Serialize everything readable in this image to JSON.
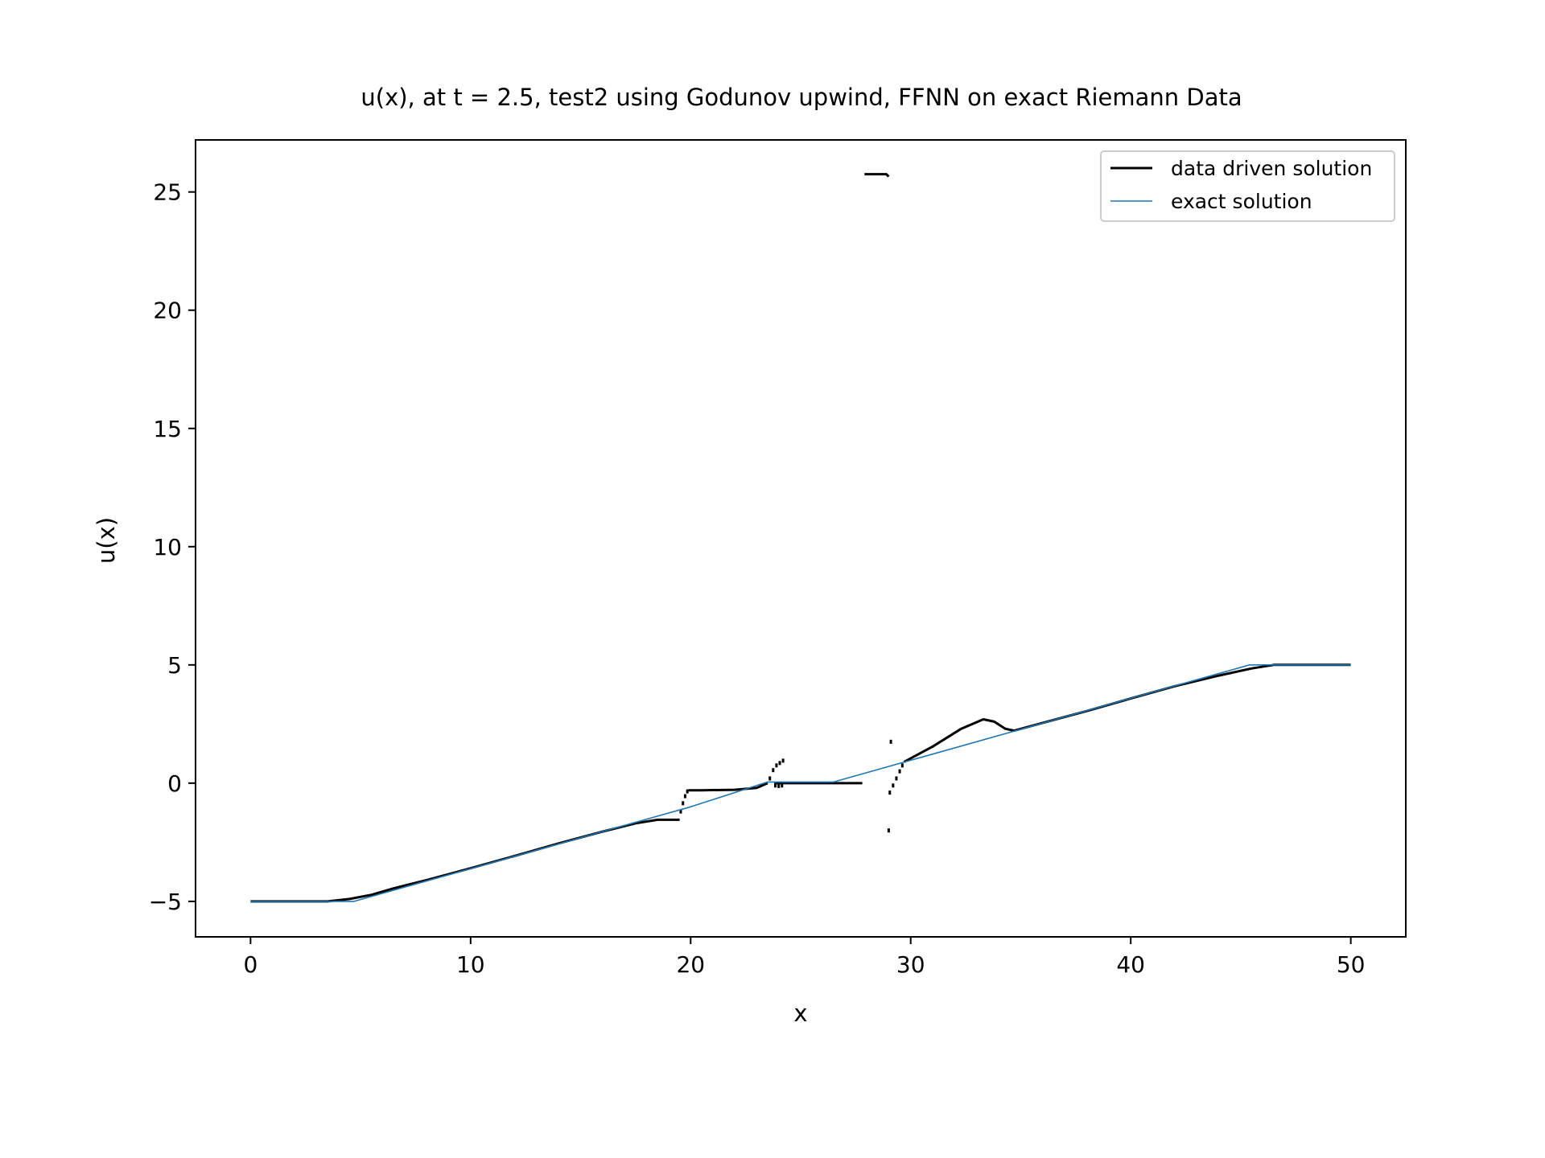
{
  "chart_data": {
    "type": "line",
    "title": "u(x), at t = 2.5, test2 using Godunov upwind, FFNN on exact Riemann Data",
    "xlabel": "x",
    "ylabel": "u(x)",
    "xlim": [
      -2.5,
      52.5
    ],
    "ylim": [
      -6.5,
      27.2
    ],
    "x_ticks": [
      0,
      10,
      20,
      30,
      40,
      50
    ],
    "x_tick_labels": [
      "0",
      "10",
      "20",
      "30",
      "40",
      "50"
    ],
    "y_ticks": [
      -5,
      0,
      5,
      10,
      15,
      20,
      25
    ],
    "y_tick_labels": [
      "−5",
      "0",
      "5",
      "10",
      "15",
      "20",
      "25"
    ],
    "grid": false,
    "legend": {
      "position": "top-right",
      "entries": [
        "data driven solution",
        "exact solution"
      ]
    },
    "series": [
      {
        "name": "data driven solution",
        "color": "#000000",
        "style": "line",
        "points": [
          [
            0,
            -5.0
          ],
          [
            3.5,
            -5.0
          ],
          [
            4.5,
            -4.9
          ],
          [
            5.5,
            -4.72
          ],
          [
            6.5,
            -4.45
          ],
          [
            8,
            -4.1
          ],
          [
            10,
            -3.6
          ],
          [
            12,
            -3.08
          ],
          [
            14,
            -2.55
          ],
          [
            16,
            -2.05
          ],
          [
            17.5,
            -1.7
          ],
          [
            18.5,
            -1.55
          ],
          [
            19.5,
            -1.55
          ]
        ]
      },
      {
        "name": "data driven solution (segment 2)",
        "color": "#000000",
        "style": "line",
        "points": [
          [
            19.9,
            -0.3
          ],
          [
            20.5,
            -0.3
          ],
          [
            22.0,
            -0.28
          ],
          [
            23.0,
            -0.2
          ],
          [
            23.5,
            0.0
          ]
        ]
      },
      {
        "name": "data driven solution (segment 3)",
        "color": "#000000",
        "style": "line",
        "points": [
          [
            23.8,
            0.0
          ],
          [
            27.8,
            0.0
          ]
        ]
      },
      {
        "name": "data driven solution (segment 4)",
        "color": "#000000",
        "style": "line",
        "points": [
          [
            27.9,
            25.75
          ],
          [
            28.9,
            25.75
          ],
          [
            29.0,
            25.65
          ]
        ]
      },
      {
        "name": "data driven solution (segment 5)",
        "color": "#000000",
        "style": "line",
        "points": [
          [
            29.7,
            0.9
          ],
          [
            31,
            1.55
          ],
          [
            32.3,
            2.3
          ],
          [
            33.3,
            2.7
          ],
          [
            33.8,
            2.6
          ],
          [
            34.3,
            2.3
          ],
          [
            34.7,
            2.22
          ],
          [
            36,
            2.55
          ],
          [
            38,
            3.05
          ],
          [
            40,
            3.58
          ],
          [
            42,
            4.1
          ],
          [
            44,
            4.55
          ],
          [
            45.5,
            4.85
          ],
          [
            46.5,
            5.0
          ],
          [
            50,
            5.0
          ]
        ]
      },
      {
        "name": "data driven solution (scattered points)",
        "color": "#000000",
        "style": "points",
        "points": [
          [
            19.55,
            -1.2
          ],
          [
            19.65,
            -0.85
          ],
          [
            19.75,
            -0.55
          ],
          [
            19.85,
            -0.35
          ],
          [
            23.6,
            0.2
          ],
          [
            23.75,
            0.55
          ],
          [
            23.9,
            0.75
          ],
          [
            24.05,
            0.85
          ],
          [
            24.2,
            0.95
          ],
          [
            23.85,
            -0.1
          ],
          [
            24.0,
            -0.12
          ],
          [
            24.15,
            -0.1
          ],
          [
            29.1,
            1.75
          ],
          [
            29.05,
            -0.4
          ],
          [
            29.2,
            -0.1
          ],
          [
            29.35,
            0.2
          ],
          [
            29.5,
            0.5
          ],
          [
            29.62,
            0.75
          ],
          [
            29.0,
            -2.0
          ]
        ]
      },
      {
        "name": "exact solution",
        "color": "#1f77b4",
        "style": "line",
        "points": [
          [
            0,
            -5.0
          ],
          [
            4.7,
            -5.0
          ],
          [
            20,
            -1.0
          ],
          [
            23.5,
            0.05
          ],
          [
            26.5,
            0.05
          ],
          [
            45.4,
            5.0
          ],
          [
            50,
            5.0
          ]
        ]
      }
    ]
  }
}
